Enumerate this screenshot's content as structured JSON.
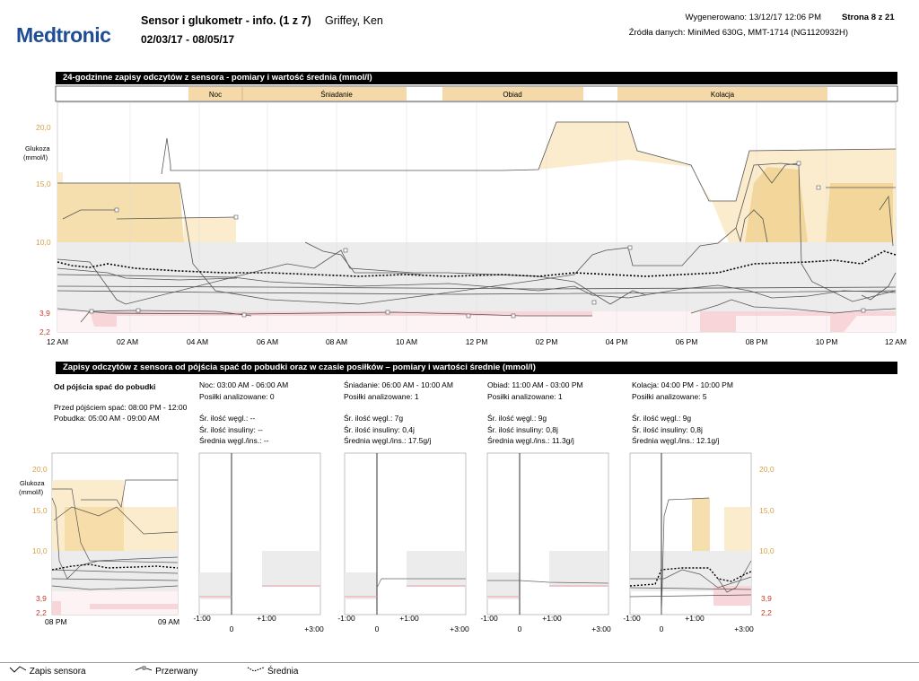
{
  "header": {
    "logo": "Medtronic",
    "title": "Sensor i glukometr - info. (1 z 7)",
    "patient": "Griffey, Ken",
    "date_range": "02/03/17 - 08/05/17",
    "generated": "Wygenerowano: 13/12/17 12:06 PM",
    "page": "Strona 8 z 21",
    "sources": "Źródła danych: MiniMed 630G, MMT-1714 (NG1120932H)"
  },
  "chart1": {
    "title": "24-godzinne zapisy odczytów z sensora - pomiary i wartość średnia (mmol/l)",
    "ylabel": "Glukoza\n(mmol/l)",
    "periods": [
      "Noc",
      "Śniadanie",
      "Obiad",
      "Kolacja"
    ],
    "y_ticks": [
      "20,0",
      "15,0",
      "10,0",
      "3,9",
      "2,2"
    ],
    "x_ticks": [
      "12 AM",
      "02 AM",
      "04 AM",
      "06 AM",
      "08 AM",
      "10 AM",
      "12 PM",
      "02 PM",
      "04 PM",
      "06 PM",
      "08 PM",
      "10 PM",
      "12 AM"
    ]
  },
  "section2": {
    "title": "Zapisy odczytów z sensora od pójścia spać do pobudki oraz w czasie posiłków – pomiary i wartości średnie (mmol/l)",
    "sleep": {
      "heading": "Od pójścia spać do pobudki",
      "before": "Przed pójściem spać: 08:00 PM - 12:00",
      "wake": "Pobudka: 05:00 AM - 09:00 AM",
      "ylabel": "Glukoza\n(mmol/l)",
      "x_start": "08 PM",
      "x_end": "09 AM"
    },
    "meals": [
      {
        "name": "Noc: 03:00 AM - 06:00 AM",
        "analyzed": "Posiłki analizowane: 0",
        "carbs": "Śr. ilość węgl.: --",
        "insulin": "Śr. ilość insuliny: --",
        "ratio": "Średnia węgl./ins.: --"
      },
      {
        "name": "Śniadanie: 06:00 AM - 10:00 AM",
        "analyzed": "Posiłki analizowane: 1",
        "carbs": "Śr. ilość węgl.: 7g",
        "insulin": "Śr. ilość insuliny: 0,4j",
        "ratio": "Średnia węgl./ins.: 17.5g/j"
      },
      {
        "name": "Obiad: 11:00 AM - 03:00 PM",
        "analyzed": "Posiłki analizowane: 1",
        "carbs": "Śr. ilość węgl.: 9g",
        "insulin": "Śr. ilość insuliny: 0,8j",
        "ratio": "Średnia węgl./ins.: 11.3g/j"
      },
      {
        "name": "Kolacja: 04:00 PM - 10:00 PM",
        "analyzed": "Posiłki analizowane: 5",
        "carbs": "Śr. ilość węgl.: 9g",
        "insulin": "Śr. ilość insuliny: 0,8j",
        "ratio": "Średnia węgl./ins.: 12.1g/j"
      }
    ],
    "meal_x_ticks": [
      "-1:00",
      "0",
      "+1:00",
      "+3:00"
    ],
    "right_y_ticks": [
      "20,0",
      "15,0",
      "10,0",
      "3,9",
      "2,2"
    ]
  },
  "legend": {
    "sensor": "Zapis sensora",
    "interrupted": "Przerwany",
    "average": "Średnia"
  },
  "colors": {
    "logo": "#1e4d94",
    "period_band": "#f5d9a8",
    "high_zone": "#fbeccd",
    "target_zone": "#ececec",
    "low_zone": "#f8d5d8",
    "high_tick": "#d9a248",
    "low_tick": "#c0392b"
  }
}
